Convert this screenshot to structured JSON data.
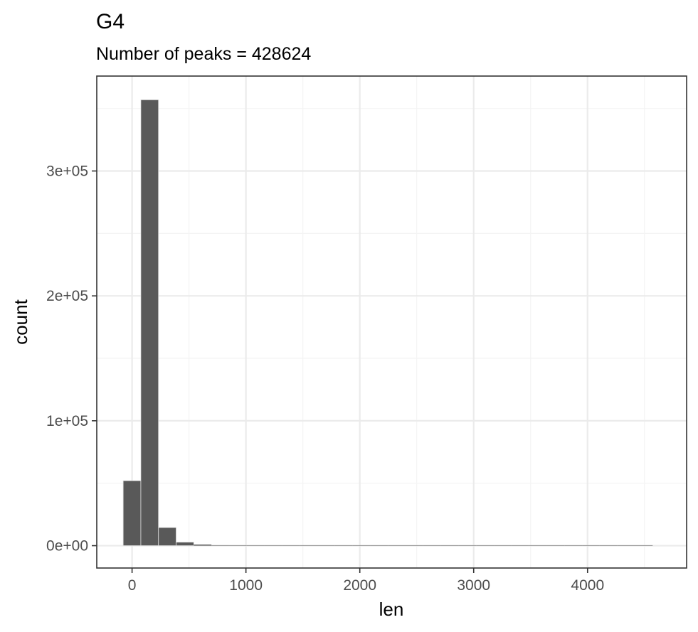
{
  "chart_data": {
    "type": "bar",
    "title": "G4",
    "subtitle": "Number of peaks = 428624",
    "xlabel": "len",
    "ylabel": "count",
    "xlim": [
      -310,
      4870
    ],
    "ylim": [
      -17900,
      376000
    ],
    "x_ticks": [
      0,
      1000,
      2000,
      3000,
      4000
    ],
    "x_tick_labels": [
      "0",
      "1000",
      "2000",
      "3000",
      "4000"
    ],
    "y_ticks": [
      0,
      100000,
      200000,
      300000
    ],
    "y_tick_labels": [
      "0e+00",
      "1e+05",
      "2e+05",
      "3e+05"
    ],
    "x_minor_ticks": [
      500,
      1500,
      2500,
      3500,
      4500
    ],
    "y_minor_ticks": [
      50000,
      150000,
      250000,
      350000
    ],
    "grid": true,
    "bin_width": 155,
    "bins": [
      {
        "x0": -78,
        "x1": 77,
        "count": 52000
      },
      {
        "x0": 77,
        "x1": 232,
        "count": 357000
      },
      {
        "x0": 232,
        "x1": 387,
        "count": 14500
      },
      {
        "x0": 387,
        "x1": 542,
        "count": 2800
      },
      {
        "x0": 542,
        "x1": 697,
        "count": 900
      },
      {
        "x0": 697,
        "x1": 852,
        "count": 350
      },
      {
        "x0": 852,
        "x1": 1007,
        "count": 150
      },
      {
        "x0": 1007,
        "x1": 1162,
        "count": 80
      },
      {
        "x0": 1162,
        "x1": 1317,
        "count": 50
      },
      {
        "x0": 1317,
        "x1": 1472,
        "count": 30
      },
      {
        "x0": 1472,
        "x1": 1627,
        "count": 20
      },
      {
        "x0": 1627,
        "x1": 1782,
        "count": 15
      },
      {
        "x0": 1782,
        "x1": 1937,
        "count": 10
      },
      {
        "x0": 1937,
        "x1": 2092,
        "count": 8
      },
      {
        "x0": 2092,
        "x1": 2247,
        "count": 5
      },
      {
        "x0": 2247,
        "x1": 2402,
        "count": 4
      },
      {
        "x0": 2402,
        "x1": 2557,
        "count": 3
      },
      {
        "x0": 2557,
        "x1": 2712,
        "count": 2
      },
      {
        "x0": 2712,
        "x1": 2867,
        "count": 2
      },
      {
        "x0": 2867,
        "x1": 3022,
        "count": 1
      },
      {
        "x0": 3022,
        "x1": 3177,
        "count": 1
      },
      {
        "x0": 3177,
        "x1": 3332,
        "count": 1
      },
      {
        "x0": 3332,
        "x1": 3487,
        "count": 0
      },
      {
        "x0": 3487,
        "x1": 3642,
        "count": 0
      },
      {
        "x0": 3642,
        "x1": 3797,
        "count": 0
      },
      {
        "x0": 3797,
        "x1": 3952,
        "count": 0
      },
      {
        "x0": 3952,
        "x1": 4107,
        "count": 0
      },
      {
        "x0": 4107,
        "x1": 4262,
        "count": 0
      },
      {
        "x0": 4262,
        "x1": 4417,
        "count": 0
      },
      {
        "x0": 4417,
        "x1": 4572,
        "count": 1
      }
    ],
    "colors": {
      "bar_fill": "#595959",
      "bar_stroke": "#e0e0e0",
      "grid_major": "#ebebeb",
      "grid_minor": "#f4f4f4",
      "panel_border": "#333333",
      "tick_label": "#4d4d4d"
    }
  }
}
